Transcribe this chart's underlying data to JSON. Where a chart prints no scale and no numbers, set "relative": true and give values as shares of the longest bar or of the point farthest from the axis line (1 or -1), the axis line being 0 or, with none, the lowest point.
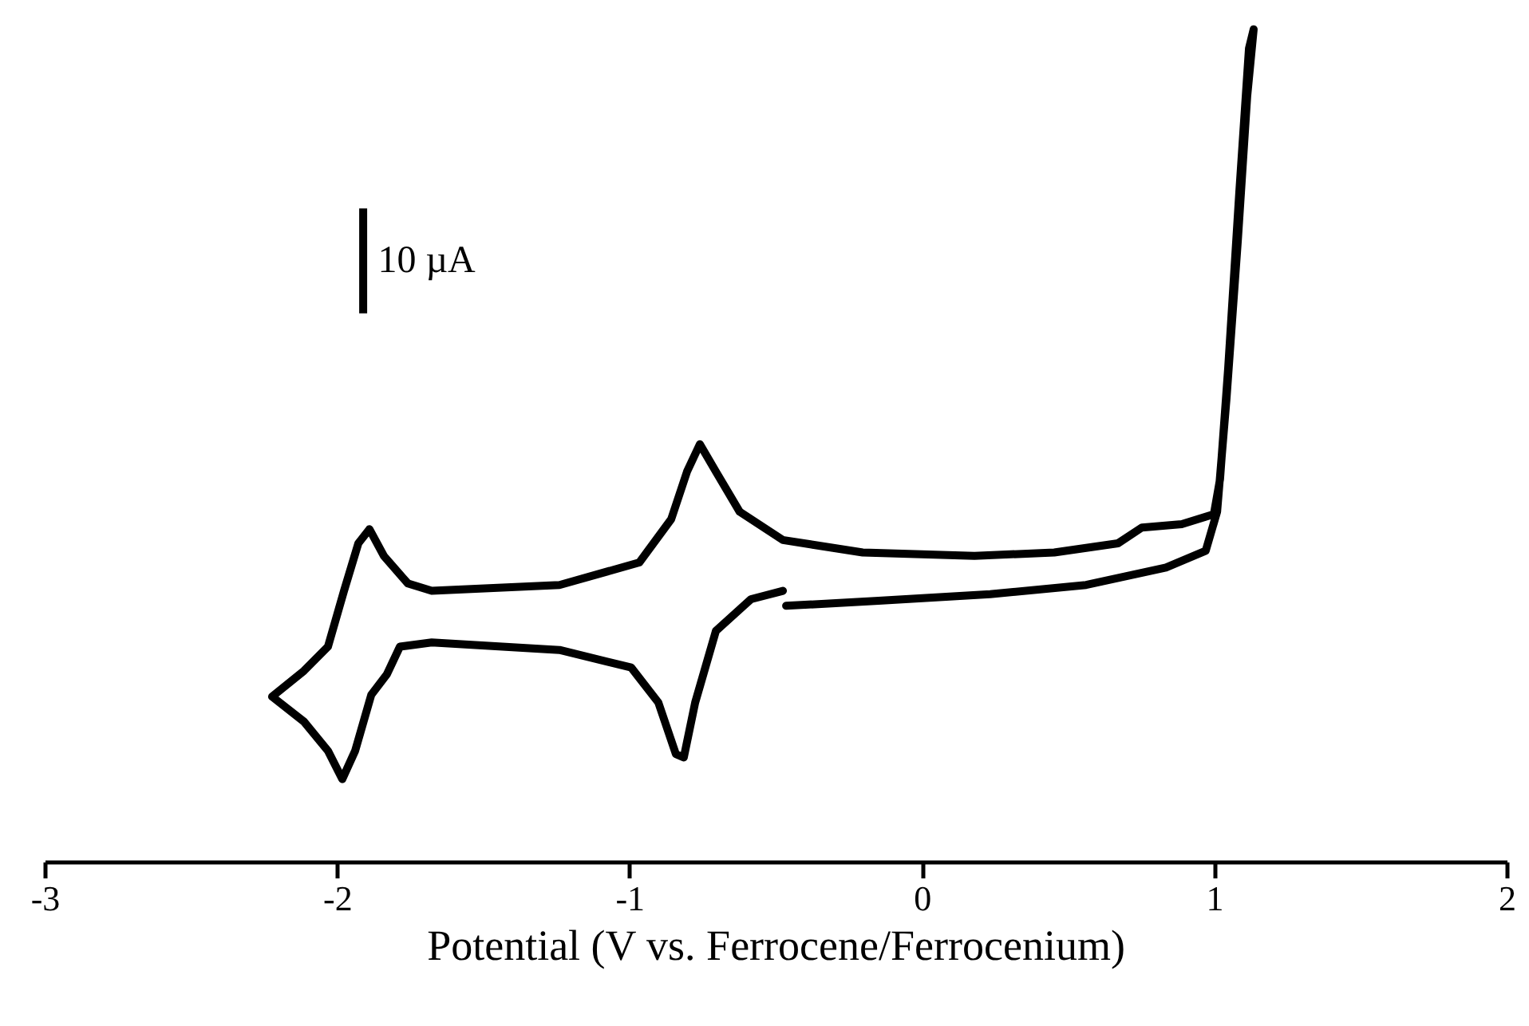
{
  "chart_data": {
    "type": "line",
    "relative": true,
    "xlabel": "Potential (V vs. Ferrocene/Ferrocenium)",
    "xlim": [
      -3,
      2
    ],
    "xticks": [
      -3,
      -2,
      -1,
      0,
      1,
      2
    ],
    "grid": false,
    "marker": "none",
    "line_style": "solid",
    "annotations": [
      "10 µA"
    ],
    "series": [
      {
        "color": "#000000",
        "x": [
          -0.467,
          -0.151,
          0.231,
          0.559,
          0.832,
          0.968,
          1.007,
          1.039,
          1.078,
          1.11,
          1.132,
          1.116,
          1.083,
          1.045,
          1.017,
          0.996,
          0.886,
          0.75,
          0.668,
          0.45,
          0.177,
          -0.205,
          -0.478,
          -0.626,
          -0.707,
          -0.762,
          -0.806,
          -0.86,
          -0.969,
          -1.242,
          -1.679,
          -1.761,
          -1.843,
          -1.892,
          -1.93,
          -1.979,
          -2.034,
          -2.116,
          -2.225,
          -2.116,
          -2.034,
          -1.985,
          -1.941,
          -1.886,
          -1.832,
          -1.788,
          -1.679,
          -1.242,
          -0.997,
          -0.904,
          -0.844,
          -0.817,
          -0.778,
          -0.707,
          -0.587,
          -0.478
        ],
        "values": [
          0.308,
          0.314,
          0.322,
          0.333,
          0.354,
          0.374,
          0.421,
          0.556,
          0.747,
          0.92,
          1.0,
          0.977,
          0.805,
          0.594,
          0.46,
          0.418,
          0.406,
          0.402,
          0.383,
          0.372,
          0.368,
          0.372,
          0.387,
          0.421,
          0.469,
          0.502,
          0.469,
          0.412,
          0.36,
          0.333,
          0.326,
          0.335,
          0.368,
          0.4,
          0.383,
          0.326,
          0.259,
          0.23,
          0.199,
          0.169,
          0.134,
          0.1,
          0.134,
          0.201,
          0.226,
          0.259,
          0.264,
          0.255,
          0.234,
          0.192,
          0.13,
          0.126,
          0.192,
          0.278,
          0.316,
          0.326
        ]
      }
    ]
  }
}
